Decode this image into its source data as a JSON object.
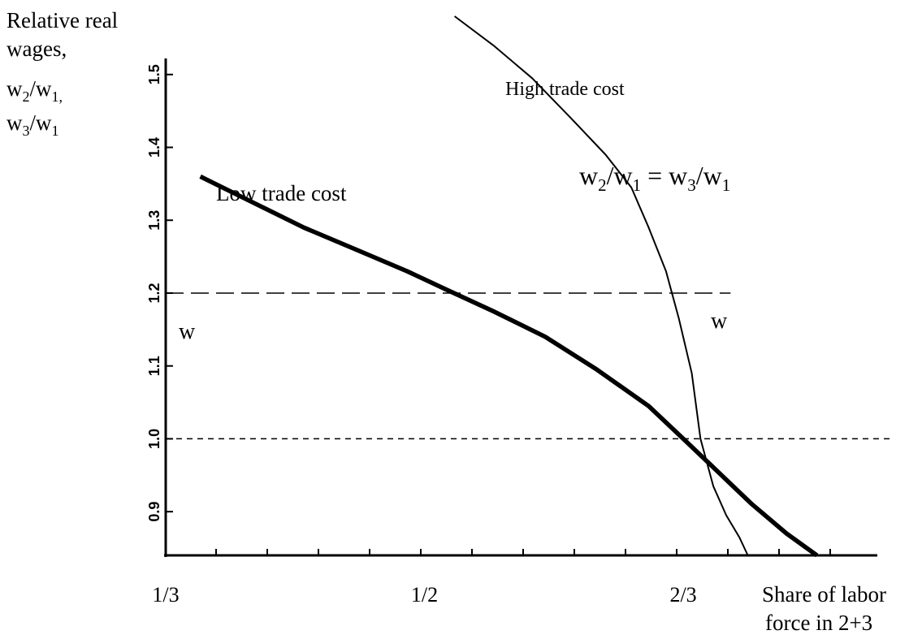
{
  "chart_data": {
    "type": "line",
    "ylabel_lines": [
      "Relative real",
      "wages,"
    ],
    "ylabel_fractions": [
      {
        "num": "w",
        "num_sub": "2",
        "den": "w",
        "den_sub": "1",
        "trail": ","
      },
      {
        "num": "w",
        "num_sub": "3",
        "den": "w",
        "den_sub": "1",
        "trail": ""
      }
    ],
    "xlabel_lines": [
      "Share of labor",
      "force in 2+3"
    ],
    "xlim": [
      0.3333,
      0.6944
    ],
    "ylim": [
      0.84,
      1.58
    ],
    "x_ticks": [
      {
        "value": 0.3333,
        "label": "1/3"
      },
      {
        "value": 0.5,
        "label": "1/2"
      },
      {
        "value": 0.6667,
        "label": "2/3"
      }
    ],
    "y_ticks": [
      {
        "value": 0.9,
        "label": "0.9"
      },
      {
        "value": 1.0,
        "label": "1.0"
      },
      {
        "value": 1.1,
        "label": "1.1"
      },
      {
        "value": 1.2,
        "label": "1.2"
      },
      {
        "value": 1.3,
        "label": "1.3"
      },
      {
        "value": 1.4,
        "label": "1.4"
      },
      {
        "value": 1.5,
        "label": "1.5"
      }
    ],
    "series": [
      {
        "name": "Low trade cost",
        "style": "thick",
        "points": [
          [
            0.3556,
            1.36
          ],
          [
            0.3889,
            1.325
          ],
          [
            0.4222,
            1.29
          ],
          [
            0.4556,
            1.26
          ],
          [
            0.4889,
            1.23
          ],
          [
            0.5139,
            1.205
          ],
          [
            0.5444,
            1.175
          ],
          [
            0.5778,
            1.14
          ],
          [
            0.6111,
            1.095
          ],
          [
            0.6444,
            1.045
          ],
          [
            0.6667,
            1.0
          ],
          [
            0.6889,
            0.955
          ],
          [
            0.7111,
            0.91
          ],
          [
            0.7333,
            0.87
          ],
          [
            0.7528,
            0.84
          ]
        ]
      },
      {
        "name": "High trade cost",
        "style": "thin",
        "points": [
          [
            0.5194,
            1.58
          ],
          [
            0.5444,
            1.54
          ],
          [
            0.5694,
            1.495
          ],
          [
            0.5944,
            1.44
          ],
          [
            0.6167,
            1.39
          ],
          [
            0.6333,
            1.345
          ],
          [
            0.6444,
            1.29
          ],
          [
            0.6556,
            1.23
          ],
          [
            0.6639,
            1.165
          ],
          [
            0.6722,
            1.09
          ],
          [
            0.6778,
            1.0
          ],
          [
            0.6861,
            0.935
          ],
          [
            0.6944,
            0.895
          ],
          [
            0.7028,
            0.865
          ],
          [
            0.7083,
            0.84
          ]
        ]
      }
    ],
    "reference_lines": [
      {
        "y": 1.2,
        "x_from": 0.3333,
        "x_to": 0.6972,
        "style": "long-dash",
        "label_left": "w",
        "label_right": "w"
      },
      {
        "y": 1.0,
        "x_from": 0.3333,
        "x_to": 0.8,
        "style": "short-dash"
      }
    ],
    "annotations": {
      "low_trade_cost": "Low trade cost",
      "high_trade_cost": "High trade cost",
      "equality": {
        "a": "w",
        "a_sub": "2",
        "b": "w",
        "b_sub": "1",
        "eq": " = ",
        "c": "w",
        "c_sub": "3",
        "d": "w",
        "d_sub": "1"
      }
    },
    "grid": false,
    "legend": "none"
  }
}
